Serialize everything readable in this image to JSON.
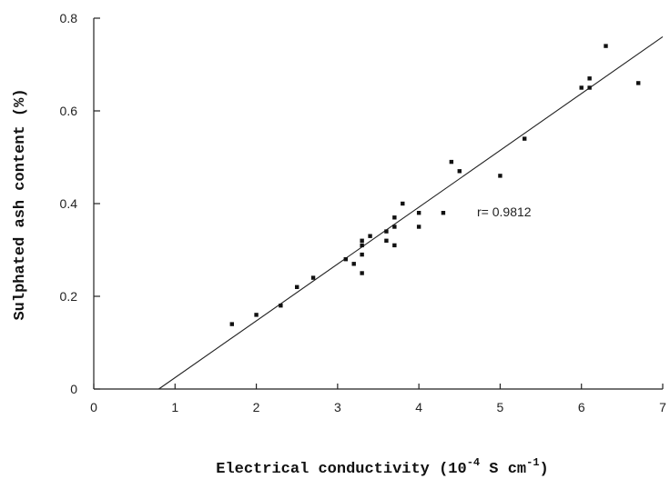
{
  "chart_data": {
    "type": "scatter",
    "title": "",
    "xlabel": {
      "main": "Electrical conductivity (10",
      "exp1": "-4",
      "unit": " S cm",
      "exp2": "-1",
      "close": ")"
    },
    "ylabel": "Sulphated ash content (%)",
    "xlim": [
      0,
      7
    ],
    "ylim": [
      0,
      0.8
    ],
    "x_ticks": [
      "0",
      "1",
      "2",
      "3",
      "4",
      "5",
      "6",
      "7"
    ],
    "y_ticks": [
      "0",
      "0.2",
      "0.4",
      "0.6",
      "0.8"
    ],
    "grid": false,
    "annotation": "r= 0.9812",
    "regression_line": {
      "x": [
        0.8,
        7.0
      ],
      "y": [
        0.0,
        0.76
      ]
    },
    "points": [
      {
        "x": 1.7,
        "y": 0.14
      },
      {
        "x": 2.0,
        "y": 0.16
      },
      {
        "x": 2.3,
        "y": 0.18
      },
      {
        "x": 2.5,
        "y": 0.22
      },
      {
        "x": 2.7,
        "y": 0.24
      },
      {
        "x": 3.1,
        "y": 0.28
      },
      {
        "x": 3.2,
        "y": 0.27
      },
      {
        "x": 3.3,
        "y": 0.25
      },
      {
        "x": 3.3,
        "y": 0.29
      },
      {
        "x": 3.3,
        "y": 0.31
      },
      {
        "x": 3.3,
        "y": 0.32
      },
      {
        "x": 3.4,
        "y": 0.33
      },
      {
        "x": 3.6,
        "y": 0.32
      },
      {
        "x": 3.6,
        "y": 0.34
      },
      {
        "x": 3.7,
        "y": 0.31
      },
      {
        "x": 3.7,
        "y": 0.35
      },
      {
        "x": 3.7,
        "y": 0.37
      },
      {
        "x": 3.8,
        "y": 0.4
      },
      {
        "x": 4.0,
        "y": 0.35
      },
      {
        "x": 4.0,
        "y": 0.38
      },
      {
        "x": 4.3,
        "y": 0.38
      },
      {
        "x": 4.4,
        "y": 0.49
      },
      {
        "x": 4.5,
        "y": 0.47
      },
      {
        "x": 5.0,
        "y": 0.46
      },
      {
        "x": 5.3,
        "y": 0.54
      },
      {
        "x": 6.0,
        "y": 0.65
      },
      {
        "x": 6.1,
        "y": 0.65
      },
      {
        "x": 6.1,
        "y": 0.67
      },
      {
        "x": 6.3,
        "y": 0.74
      },
      {
        "x": 6.7,
        "y": 0.66
      }
    ]
  }
}
